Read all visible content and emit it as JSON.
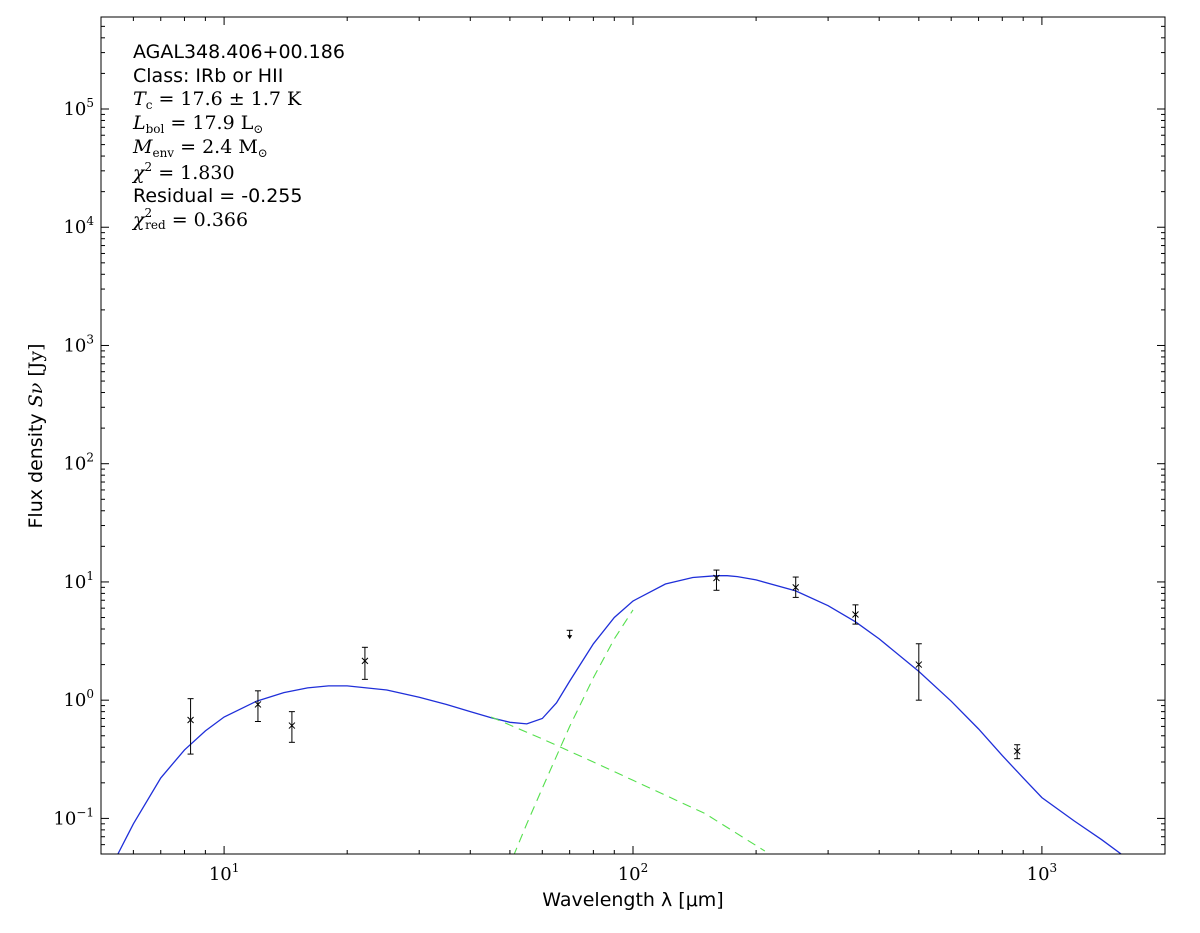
{
  "chart_data": {
    "type": "scatter",
    "x_scale": "log",
    "y_scale": "log",
    "xlim": [
      5,
      2000
    ],
    "ylim": [
      0.05,
      600000
    ],
    "xlabel": "Wavelength λ [μm]",
    "ylabel_prefix": "Flux density ",
    "ylabel_sym": "Sν",
    "ylabel_unit": " [Jy]",
    "x_ticks": [
      {
        "value": 10,
        "base": "10",
        "exp": "1"
      },
      {
        "value": 100,
        "base": "10",
        "exp": "2"
      },
      {
        "value": 1000,
        "base": "10",
        "exp": "3"
      }
    ],
    "y_ticks": [
      {
        "value": 0.1,
        "base": "10",
        "exp": "−1"
      },
      {
        "value": 1,
        "base": "10",
        "exp": "0"
      },
      {
        "value": 10,
        "base": "10",
        "exp": "1"
      },
      {
        "value": 100,
        "base": "10",
        "exp": "2"
      },
      {
        "value": 1000,
        "base": "10",
        "exp": "3"
      },
      {
        "value": 10000,
        "base": "10",
        "exp": "4"
      },
      {
        "value": 100000,
        "base": "10",
        "exp": "5"
      }
    ],
    "annotations": {
      "source": "AGAL348.406+00.186",
      "class_line": "Class: IRb or HII",
      "tc": {
        "sym": "T",
        "sub": "c",
        "rest": " = 17.6 ± 1.7 K"
      },
      "lbol": {
        "sym": "L",
        "sub": "bol",
        "rest": " = 17.9 L",
        "sun": "⊙"
      },
      "menv": {
        "sym": "M",
        "sub": "env",
        "rest": " = 2.4 M",
        "sun": "⊙"
      },
      "chi2": {
        "sym": "χ",
        "sup": "2",
        "rest": " = 1.830"
      },
      "residual": "Residual = -0.255",
      "chi2red": {
        "sym": "χ",
        "sup": "2",
        "sub": "red",
        "rest": " = 0.366"
      }
    },
    "points": [
      {
        "x": 8.28,
        "y": 0.68,
        "err_lo": 0.35,
        "err_hi": 1.03
      },
      {
        "x": 12.1,
        "y": 0.92,
        "err_lo": 0.66,
        "err_hi": 1.2
      },
      {
        "x": 14.65,
        "y": 0.61,
        "err_lo": 0.44,
        "err_hi": 0.8
      },
      {
        "x": 22.1,
        "y": 2.15,
        "err_lo": 1.5,
        "err_hi": 2.8
      },
      {
        "x": 160,
        "y": 10.8,
        "err_lo": 8.5,
        "err_hi": 12.6
      },
      {
        "x": 250,
        "y": 9.0,
        "err_lo": 7.4,
        "err_hi": 11.0
      },
      {
        "x": 350,
        "y": 5.3,
        "err_lo": 4.4,
        "err_hi": 6.4
      },
      {
        "x": 500,
        "y": 2.0,
        "err_lo": 1.0,
        "err_hi": 3.0
      },
      {
        "x": 870,
        "y": 0.37,
        "err_lo": 0.32,
        "err_hi": 0.42
      }
    ],
    "upper_limits": [
      {
        "x": 70,
        "y": 3.9,
        "y_tip": 3.35
      }
    ],
    "series": [
      {
        "style": "solid",
        "color": "#1f2fd9",
        "x": [
          5.5,
          6,
          7,
          8,
          9,
          10,
          12,
          14,
          16,
          18,
          20,
          25,
          30,
          35,
          40,
          45,
          50,
          55,
          60,
          65,
          70,
          80,
          90,
          100,
          120,
          140,
          160,
          170,
          180,
          200,
          250,
          300,
          350,
          400,
          500,
          600,
          700,
          800,
          900,
          1000,
          1200,
          1400,
          1600
        ],
        "y": [
          0.05,
          0.09,
          0.22,
          0.38,
          0.55,
          0.72,
          0.98,
          1.16,
          1.27,
          1.32,
          1.32,
          1.22,
          1.06,
          0.92,
          0.8,
          0.71,
          0.65,
          0.63,
          0.7,
          0.95,
          1.45,
          3.0,
          5.0,
          6.9,
          9.6,
          10.9,
          11.3,
          11.3,
          11.1,
          10.4,
          8.4,
          6.3,
          4.6,
          3.3,
          1.75,
          0.98,
          0.57,
          0.34,
          0.22,
          0.15,
          0.095,
          0.066,
          0.047
        ]
      },
      {
        "style": "dashed",
        "color": "#55e04d",
        "x": [
          45,
          60,
          80,
          100,
          150,
          210
        ],
        "y": [
          0.72,
          0.47,
          0.3,
          0.21,
          0.11,
          0.053
        ]
      },
      {
        "style": "dashed",
        "color": "#55e04d",
        "x": [
          51,
          55,
          60,
          70,
          80,
          90,
          100
        ],
        "y": [
          0.048,
          0.09,
          0.18,
          0.6,
          1.55,
          3.3,
          5.8
        ]
      }
    ]
  }
}
